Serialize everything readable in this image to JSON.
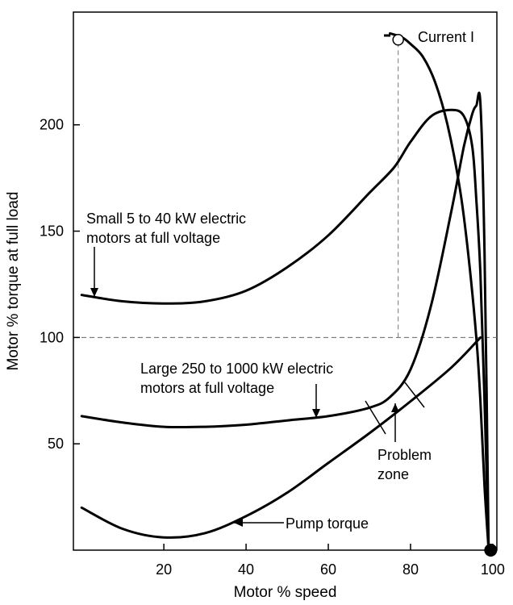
{
  "chart_data": {
    "type": "line",
    "title": "",
    "xlabel": "Motor % speed",
    "ylabel": "Motor % torque at full load",
    "xlim": [
      -2,
      101
    ],
    "ylim": [
      0,
      253
    ],
    "x_ticks": [
      20,
      40,
      60,
      80,
      100
    ],
    "y_ticks": [
      50,
      100,
      150,
      200
    ],
    "grid": false,
    "reference_line": {
      "y": 100
    },
    "series": [
      {
        "id": "small",
        "x": [
          0,
          10,
          20,
          30,
          40,
          50,
          60,
          70,
          76,
          80,
          85,
          90,
          93,
          95,
          96,
          97,
          98,
          99
        ],
        "y": [
          120,
          117,
          116,
          117,
          122,
          133,
          148,
          168,
          180,
          192,
          204,
          207,
          204,
          190,
          165,
          130,
          70,
          0
        ]
      },
      {
        "id": "large",
        "x": [
          0,
          10,
          20,
          30,
          40,
          50,
          60,
          70,
          75,
          80,
          85,
          90,
          93,
          95,
          96,
          97,
          98,
          99
        ],
        "y": [
          63,
          60,
          58,
          58,
          59,
          61,
          63,
          67,
          72,
          85,
          115,
          160,
          190,
          205,
          209,
          210,
          140,
          0
        ]
      },
      {
        "id": "pump",
        "x": [
          0,
          10,
          20,
          30,
          40,
          50,
          60,
          70,
          80,
          90,
          97
        ],
        "y": [
          20,
          10,
          6,
          8,
          16,
          27,
          41,
          55,
          70,
          86,
          100
        ]
      },
      {
        "id": "current",
        "x": [
          75,
          78,
          80,
          83,
          86,
          89,
          92,
          94,
          96,
          97,
          98,
          99
        ],
        "y": [
          243,
          241,
          238,
          232,
          220,
          200,
          170,
          140,
          100,
          70,
          30,
          0
        ]
      }
    ],
    "annotations": [
      {
        "id": "current",
        "lines": [
          "Current I"
        ]
      },
      {
        "id": "small",
        "lines": [
          "Small 5 to 40 kW electric",
          "motors at full voltage"
        ]
      },
      {
        "id": "large",
        "lines": [
          "Large 250 to 1000 kW electric",
          "motors at full voltage"
        ]
      },
      {
        "id": "problem",
        "lines": [
          "Problem",
          "zone"
        ]
      },
      {
        "id": "pump",
        "lines": [
          "Pump torque"
        ]
      }
    ],
    "markers": [
      {
        "id": "current-start",
        "x": 77,
        "y": 240,
        "style": "open"
      },
      {
        "id": "endpoint",
        "x": 99.5,
        "y": 0,
        "style": "filled"
      }
    ],
    "guide_line": {
      "x": 77,
      "from_y": 100,
      "to_y": 240
    }
  }
}
